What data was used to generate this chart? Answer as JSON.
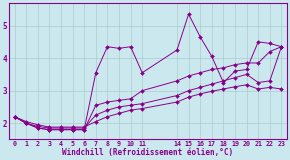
{
  "bg_color": "#cce8ef",
  "line_color": "#880088",
  "grid_color": "#aacccc",
  "spine_color": "#880088",
  "xlabel": "Windchill (Refroidissement éolien,°C)",
  "xlabel_color": "#880088",
  "ylabel_ticks": [
    2,
    3,
    4,
    5
  ],
  "xlim": [
    -0.5,
    23.5
  ],
  "ylim": [
    1.5,
    5.7
  ],
  "xticks": [
    0,
    1,
    2,
    3,
    4,
    5,
    6,
    7,
    8,
    9,
    10,
    11,
    14,
    15,
    16,
    17,
    18,
    19,
    20,
    21,
    22,
    23
  ],
  "x_positions": [
    0,
    1,
    2,
    3,
    4,
    5,
    6,
    7,
    8,
    9,
    10,
    11,
    14,
    15,
    16,
    17,
    18,
    19,
    20,
    21,
    22,
    23
  ],
  "series": [
    [
      2.2,
      2.0,
      1.85,
      1.8,
      1.8,
      1.8,
      1.8,
      3.55,
      4.35,
      4.3,
      4.35,
      3.55,
      4.25,
      5.35,
      4.65,
      4.05,
      3.25,
      3.6,
      3.65,
      4.5,
      4.45,
      4.35
    ],
    [
      2.2,
      2.0,
      1.85,
      1.8,
      1.8,
      1.8,
      1.8,
      2.55,
      2.65,
      2.7,
      2.75,
      3.0,
      3.3,
      3.45,
      3.55,
      3.65,
      3.7,
      3.8,
      3.85,
      3.85,
      4.2,
      4.35
    ],
    [
      2.2,
      2.0,
      1.9,
      1.85,
      1.85,
      1.85,
      1.85,
      2.25,
      2.4,
      2.5,
      2.55,
      2.6,
      2.85,
      3.0,
      3.1,
      3.2,
      3.3,
      3.4,
      3.5,
      3.25,
      3.3,
      4.35
    ],
    [
      2.2,
      2.05,
      1.95,
      1.88,
      1.88,
      1.88,
      1.88,
      2.05,
      2.2,
      2.3,
      2.4,
      2.45,
      2.65,
      2.8,
      2.9,
      2.98,
      3.05,
      3.12,
      3.18,
      3.05,
      3.1,
      3.05
    ]
  ]
}
